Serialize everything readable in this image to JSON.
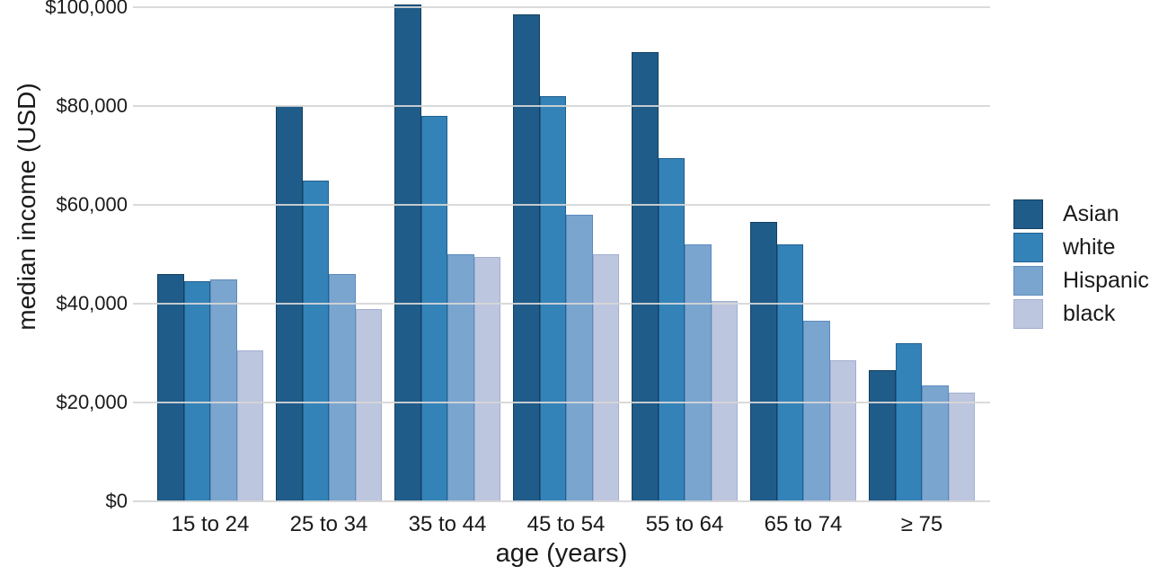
{
  "chart_data": {
    "type": "bar",
    "title": "",
    "xlabel": "age (years)",
    "ylabel": "median income (USD)",
    "categories": [
      "15 to 24",
      "25 to 34",
      "35 to 44",
      "45 to 54",
      "55 to 64",
      "65 to 74",
      "≥ 75"
    ],
    "series": [
      {
        "name": "Asian",
        "color": "#1f5c8a",
        "edge_color": "#14405f",
        "values": [
          46000,
          80000,
          100500,
          98500,
          91000,
          56500,
          26500
        ]
      },
      {
        "name": "white",
        "color": "#3383b8",
        "edge_color": "#226090",
        "values": [
          44500,
          65000,
          78000,
          82000,
          69500,
          52000,
          32000
        ]
      },
      {
        "name": "Hispanic",
        "color": "#7aa5cf",
        "edge_color": "#5d8bbd",
        "values": [
          45000,
          46000,
          50000,
          58000,
          52000,
          36500,
          23500
        ]
      },
      {
        "name": "black",
        "color": "#bdc6df",
        "edge_color": "#a2afd2",
        "values": [
          30500,
          39000,
          49500,
          50000,
          40500,
          28500,
          22000
        ]
      }
    ],
    "ylim": [
      0,
      100000
    ],
    "yticks": [
      {
        "value": 0,
        "label": "$0"
      },
      {
        "value": 20000,
        "label": "$20,000"
      },
      {
        "value": 40000,
        "label": "$40,000"
      },
      {
        "value": 60000,
        "label": "$60,000"
      },
      {
        "value": 80000,
        "label": "$80,000"
      },
      {
        "value": 100000,
        "label": "$100,000"
      }
    ],
    "grid": "horizontal",
    "grid_color": "#d6d6d6",
    "legend_position": "right",
    "text_color": "#1a1a1a",
    "background_color": "#ffffff"
  }
}
